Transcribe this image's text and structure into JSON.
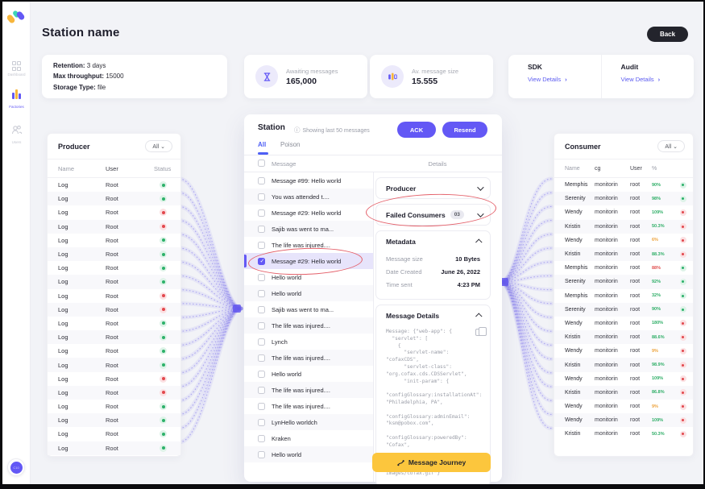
{
  "colors": {
    "accent": "#6358f5",
    "tab_active": "#4e5ff5",
    "yellow": "#fcc63d",
    "green": "#2db16a",
    "red": "#e2484d",
    "orange": "#eda33d",
    "annotation": "#e4606a"
  },
  "sidebar": {
    "items": [
      {
        "label": "Dashboard"
      },
      {
        "label": "Factories"
      },
      {
        "label": "Users"
      }
    ],
    "avatar": "C10"
  },
  "header": {
    "title": "Station name",
    "back": "Back"
  },
  "overview": {
    "info": [
      {
        "label": "Retention:",
        "value": " 3 days"
      },
      {
        "label": "Max throughput:",
        "value": " 15000"
      },
      {
        "label": "Storage Type:",
        "value": " file"
      }
    ],
    "stats": [
      {
        "label": "Awaiting messages",
        "value": "165,000",
        "icon": "hourglass-icon"
      },
      {
        "label": "Av. message size",
        "value": "15.555",
        "icon": "bars-icon"
      }
    ],
    "links": [
      {
        "title": "SDK",
        "action": "View Details",
        "chevron": "›"
      },
      {
        "title": "Audit",
        "action": "View Details",
        "chevron": "›"
      }
    ]
  },
  "producer": {
    "title": "Producer",
    "filter": "All ⌄",
    "columns": {
      "name": "Name",
      "user": "User",
      "status": "Status"
    },
    "rows": [
      {
        "name": "Log",
        "user": "Root",
        "status": "green"
      },
      {
        "name": "Log",
        "user": "Root",
        "status": "green"
      },
      {
        "name": "Log",
        "user": "Root",
        "status": "red"
      },
      {
        "name": "Log",
        "user": "Root",
        "status": "red"
      },
      {
        "name": "Log",
        "user": "Root",
        "status": "green"
      },
      {
        "name": "Log",
        "user": "Root",
        "status": "green"
      },
      {
        "name": "Log",
        "user": "Root",
        "status": "green"
      },
      {
        "name": "Log",
        "user": "Root",
        "status": "green"
      },
      {
        "name": "Log",
        "user": "Root",
        "status": "red"
      },
      {
        "name": "Log",
        "user": "Root",
        "status": "red"
      },
      {
        "name": "Log",
        "user": "Root",
        "status": "green"
      },
      {
        "name": "Log",
        "user": "Root",
        "status": "green"
      },
      {
        "name": "Log",
        "user": "Root",
        "status": "green"
      },
      {
        "name": "Log",
        "user": "Root",
        "status": "green"
      },
      {
        "name": "Log",
        "user": "Root",
        "status": "red"
      },
      {
        "name": "Log",
        "user": "Root",
        "status": "red"
      },
      {
        "name": "Log",
        "user": "Root",
        "status": "green"
      },
      {
        "name": "Log",
        "user": "Root",
        "status": "green"
      },
      {
        "name": "Log",
        "user": "Root",
        "status": "green"
      },
      {
        "name": "Log",
        "user": "Root",
        "status": "green"
      }
    ]
  },
  "station": {
    "title": "Station",
    "note": "Showing last 50 messages",
    "ack": "ACK",
    "resend": "Resend",
    "tabs": {
      "all": "All",
      "poison": "Poison"
    },
    "columns": {
      "message": "Message",
      "details": "Details"
    },
    "messages": [
      {
        "text": "Message #99: Hello world",
        "selected": false
      },
      {
        "text": "You was attended t....",
        "selected": false
      },
      {
        "text": "Message #29: Hello world",
        "selected": false
      },
      {
        "text": "Sajib was went to ma...",
        "selected": false
      },
      {
        "text": "The life was injured....",
        "selected": false
      },
      {
        "text": "Message #29: Hello world",
        "selected": true
      },
      {
        "text": "Hello world",
        "selected": false
      },
      {
        "text": "Hello world",
        "selected": false
      },
      {
        "text": "Sajib was went to ma...",
        "selected": false
      },
      {
        "text": "The life was injured....",
        "selected": false
      },
      {
        "text": "Lynch",
        "selected": false
      },
      {
        "text": "The life was injured....",
        "selected": false
      },
      {
        "text": "Hello world",
        "selected": false
      },
      {
        "text": "The life was injured....",
        "selected": false
      },
      {
        "text": "The life was injured....",
        "selected": false
      },
      {
        "text": "LynHello worldch",
        "selected": false
      },
      {
        "text": "Kraken",
        "selected": false
      },
      {
        "text": "Hello world",
        "selected": false
      }
    ],
    "details": {
      "producer_section": "Producer",
      "failed_consumers": {
        "label": "Failed Consumers",
        "badge": "03"
      },
      "metadata": {
        "title": "Metadata",
        "rows": [
          {
            "label": "Message size",
            "value": "10 Bytes"
          },
          {
            "label": "Date Created",
            "value": "June 26, 2022"
          },
          {
            "label": "Time sent",
            "value": "4:23 PM"
          }
        ]
      },
      "message_details": {
        "title": "Message Details",
        "body": "Message: {\"web-app\": {\n  \"servlet\": [\n    {\n      \"servlet-name\": \"cofaxCDS\",\n      \"servlet-class\":\n\"org.cofax.cds.CDSServlet\",\n      \"init-param\": {\n\n\"configGlossary:installationAt\":\n\"Philadelphia, PA\",\n\n\"configGlossary:adminEmail\":\n\"ksm@pobox.com\",\n        \"configGlossary:poweredBy\":\n\"Cofax\",\n\n\"configGlossary:poweredByIcon\": \"/\nimages/cofax.gif\"}"
      },
      "journey": "Message Journey"
    }
  },
  "consumer": {
    "title": "Consumer",
    "filter": "All ⌄",
    "columns": {
      "name": "Name",
      "cg": "cg",
      "user": "User",
      "pct": "%"
    },
    "rows": [
      {
        "name": "Memphis",
        "cg": "monitorin",
        "user": "root",
        "pct": "90%",
        "pctColor": "green",
        "status": "green"
      },
      {
        "name": "Serenity",
        "cg": "monitorin",
        "user": "root",
        "pct": "98%",
        "pctColor": "green",
        "status": "green"
      },
      {
        "name": "Wendy",
        "cg": "monitorin",
        "user": "root",
        "pct": "109%",
        "pctColor": "green",
        "status": "red"
      },
      {
        "name": "Kristin",
        "cg": "monitorin",
        "user": "root",
        "pct": "50.3%",
        "pctColor": "green",
        "status": "red"
      },
      {
        "name": "Wendy",
        "cg": "monitorin",
        "user": "root",
        "pct": "6%",
        "pctColor": "orange",
        "status": "red"
      },
      {
        "name": "Kristin",
        "cg": "monitorin",
        "user": "root",
        "pct": "88.3%",
        "pctColor": "green",
        "status": "red"
      },
      {
        "name": "Memphis",
        "cg": "monitorin",
        "user": "root",
        "pct": "88%",
        "pctColor": "red",
        "status": "green"
      },
      {
        "name": "Serenity",
        "cg": "monitorin",
        "user": "root",
        "pct": "92%",
        "pctColor": "green",
        "status": "green"
      },
      {
        "name": "Memphis",
        "cg": "monitorin",
        "user": "root",
        "pct": "32%",
        "pctColor": "green",
        "status": "green"
      },
      {
        "name": "Serenity",
        "cg": "monitorin",
        "user": "root",
        "pct": "90%",
        "pctColor": "green",
        "status": "green"
      },
      {
        "name": "Wendy",
        "cg": "monitorin",
        "user": "root",
        "pct": "180%",
        "pctColor": "green",
        "status": "red"
      },
      {
        "name": "Kristin",
        "cg": "monitorin",
        "user": "root",
        "pct": "88.6%",
        "pctColor": "green",
        "status": "red"
      },
      {
        "name": "Wendy",
        "cg": "monitorin",
        "user": "root",
        "pct": "9%",
        "pctColor": "orange",
        "status": "red"
      },
      {
        "name": "Kristin",
        "cg": "monitorin",
        "user": "root",
        "pct": "98.9%",
        "pctColor": "green",
        "status": "red"
      },
      {
        "name": "Wendy",
        "cg": "monitorin",
        "user": "root",
        "pct": "109%",
        "pctColor": "green",
        "status": "red"
      },
      {
        "name": "Kristin",
        "cg": "monitorin",
        "user": "root",
        "pct": "86.8%",
        "pctColor": "green",
        "status": "red"
      },
      {
        "name": "Wendy",
        "cg": "monitorin",
        "user": "root",
        "pct": "9%",
        "pctColor": "orange",
        "status": "red"
      },
      {
        "name": "Wendy",
        "cg": "monitorin",
        "user": "root",
        "pct": "109%",
        "pctColor": "green",
        "status": "red"
      },
      {
        "name": "Kristin",
        "cg": "monitorin",
        "user": "root",
        "pct": "50.3%",
        "pctColor": "green",
        "status": "red"
      }
    ]
  }
}
